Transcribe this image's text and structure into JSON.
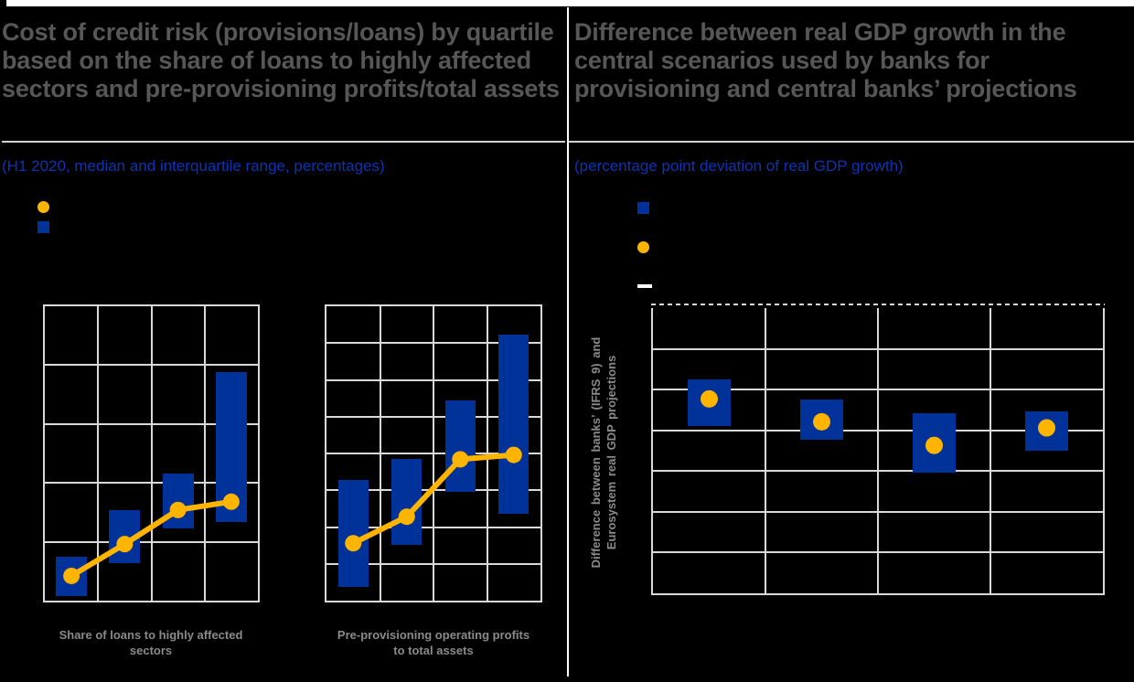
{
  "colors": {
    "background": "#000000",
    "top_bar": "#ffffff",
    "divider": "#ffffff",
    "title_gray": "#575757",
    "subtitle_blue": "#0a34b4",
    "grid_gray": "#d9d9d9",
    "iqr_blue": "#003299",
    "median_yellow": "#ffb400",
    "caption_gray": "#8a8a8a"
  },
  "left_panel": {
    "title": "Cost of credit risk (provisions/loans) by quartile based on the share of loans to highly affected sectors and pre-provisioning profits/total assets",
    "subtitle": "(H1 2020, median and interquartile range, percentages)",
    "legend": [
      {
        "marker": "circle",
        "color": "#ffb400",
        "label": ""
      },
      {
        "marker": "square",
        "color": "#003299",
        "label": ""
      }
    ],
    "captions": [
      "Share of loans to highly affected sectors",
      "Pre-provisioning operating profits to total assets"
    ]
  },
  "right_panel": {
    "title": "Difference between real GDP growth in the central scenarios used by banks for provisioning and central banks’ projections",
    "subtitle": "(percentage point deviation of real GDP growth)",
    "y_axis_label": "Difference between banks’ (IFRS 9) and Eurosystem real GDP projections",
    "legend": [
      {
        "marker": "square",
        "color": "#003299",
        "label": ""
      },
      {
        "marker": "circle",
        "color": "#ffb400",
        "label": ""
      },
      {
        "marker": "dash",
        "color": "#ffffff",
        "label": ""
      }
    ]
  },
  "chart_data": [
    {
      "id": "cost-of-credit-risk-by-share-of-loans",
      "type": "bar",
      "subtype": "interquartile-range-with-median-line",
      "title": "Share of loans to highly affected sectors",
      "categories": [
        "",
        "",
        "",
        ""
      ],
      "series": [
        {
          "name": "interquartile range",
          "low": [
            0.04,
            0.32,
            0.61,
            0.67
          ],
          "high": [
            0.37,
            0.77,
            1.08,
            1.94
          ]
        },
        {
          "name": "median",
          "values": [
            0.21,
            0.48,
            0.77,
            0.84
          ]
        }
      ],
      "ylim": [
        0,
        2.5
      ],
      "y_grid_step": 0.5,
      "grid": true,
      "x_tick_labels_visible": false,
      "y_tick_labels_visible": false
    },
    {
      "id": "cost-of-credit-risk-by-preprovisioning-profits",
      "type": "bar",
      "subtype": "interquartile-range-with-median-line",
      "title": "Pre-provisioning operating profits to total assets",
      "categories": [
        "",
        "",
        "",
        ""
      ],
      "series": [
        {
          "name": "interquartile range",
          "low": [
            0.09,
            0.38,
            0.74,
            0.59
          ],
          "high": [
            0.82,
            0.96,
            1.36,
            1.81
          ]
        },
        {
          "name": "median",
          "values": [
            0.39,
            0.57,
            0.96,
            0.99
          ]
        }
      ],
      "ylim": [
        0,
        2.0
      ],
      "y_grid_step": 0.25,
      "grid": true,
      "x_tick_labels_visible": false,
      "y_tick_labels_visible": false
    },
    {
      "id": "real-gdp-growth-deviation",
      "type": "bar",
      "subtype": "interquartile-range-with-median-points",
      "title": "Difference between banks’ (IFRS 9) and Eurosystem real GDP projections",
      "categories": [
        "",
        "",
        "",
        ""
      ],
      "series": [
        {
          "name": "interquartile range",
          "low": [
            0.1,
            -0.23,
            -1.03,
            -0.5
          ],
          "high": [
            1.24,
            0.75,
            0.41,
            0.46
          ]
        },
        {
          "name": "median",
          "values": [
            0.77,
            0.21,
            -0.37,
            0.06
          ]
        }
      ],
      "ylim": [
        -4,
        3
      ],
      "y_grid_step": 1,
      "grid": true,
      "top_border_dashed": true,
      "x_tick_labels_visible": false,
      "y_tick_labels_visible": false
    }
  ]
}
